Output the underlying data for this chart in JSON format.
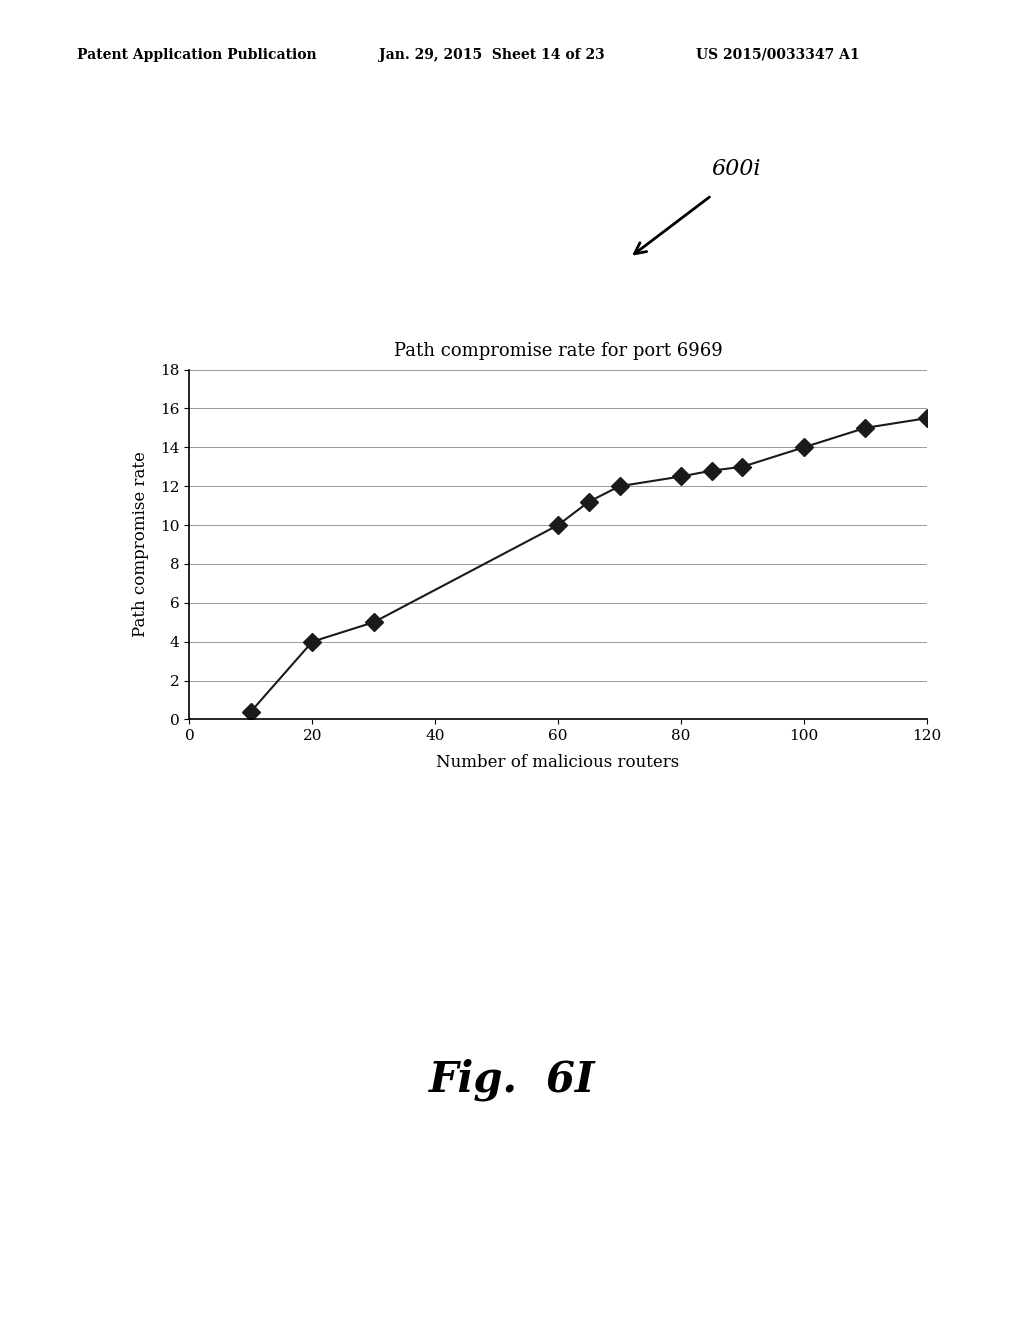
{
  "title": "Path compromise rate for port 6969",
  "xlabel": "Number of malicious routers",
  "ylabel": "Path compromise rate",
  "xlim": [
    0,
    120
  ],
  "ylim": [
    0,
    18
  ],
  "xticks": [
    0,
    20,
    40,
    60,
    80,
    100,
    120
  ],
  "yticks": [
    0,
    2,
    4,
    6,
    8,
    10,
    12,
    14,
    16,
    18
  ],
  "x_data": [
    10,
    20,
    30,
    60,
    65,
    70,
    80,
    85,
    90,
    100,
    110,
    120
  ],
  "y_data": [
    0.4,
    4.0,
    5.0,
    10.0,
    11.2,
    12.0,
    12.5,
    12.8,
    13.0,
    14.0,
    15.0,
    15.5
  ],
  "marker_color": "#1a1a1a",
  "line_color": "#1a1a1a",
  "bg_color": "#ffffff",
  "label_600i": "600i",
  "header_left": "Patent Application Publication",
  "header_mid": "Jan. 29, 2015  Sheet 14 of 23",
  "header_right": "US 2015/0033347 A1",
  "fig_label": "Fig.  6I",
  "title_fontsize": 13,
  "axis_fontsize": 12,
  "tick_fontsize": 11,
  "header_fontsize": 10
}
